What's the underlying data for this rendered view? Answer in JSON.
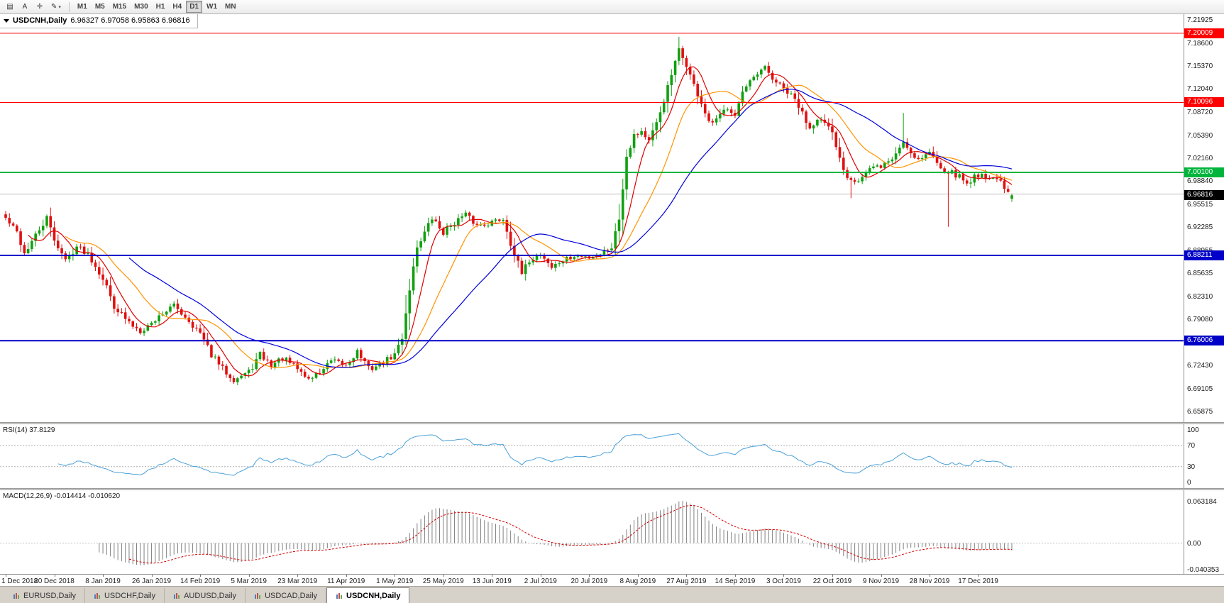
{
  "toolbar": {
    "tools": [
      {
        "name": "chart-list",
        "glyph": "▤"
      },
      {
        "name": "text-tool",
        "glyph": "A"
      },
      {
        "name": "crosshair-tool",
        "glyph": "✛"
      },
      {
        "name": "draw-tool",
        "glyph": "✎",
        "caret": true
      }
    ],
    "timeframes": [
      "M1",
      "M5",
      "M15",
      "M30",
      "H1",
      "H4",
      "D1",
      "W1",
      "MN"
    ],
    "active_timeframe": "D1"
  },
  "chart": {
    "symbol_title": "USDCNH,Daily",
    "ohlc_string": "6.96327 6.97058 6.95863 6.96816",
    "open": "6.96327",
    "high": "6.97058",
    "low": "6.95863",
    "close": "6.96816"
  },
  "price_axis": {
    "ticks": [
      "7.21925",
      "7.18600",
      "7.15370",
      "7.12040",
      "7.08720",
      "7.05390",
      "7.02160",
      "6.98840",
      "6.95515",
      "6.92285",
      "6.88955",
      "6.85635",
      "6.82310",
      "6.79080",
      "6.75750",
      "6.72430",
      "6.69105",
      "6.65875"
    ]
  },
  "levels": [
    {
      "label": "7.20009",
      "value": 7.20009,
      "color": "#ff0000",
      "badge": true,
      "width": 1
    },
    {
      "label": "7.10096",
      "value": 7.10096,
      "color": "#ff0000",
      "badge": true,
      "width": 1
    },
    {
      "label": "7.00100",
      "value": 7.001,
      "color": "#00b43c",
      "badge": true,
      "width": 2
    },
    {
      "label": "6.88211",
      "value": 6.88211,
      "color": "#0000c8",
      "badge": true,
      "width": 2
    },
    {
      "label": "6.76006",
      "value": 6.76006,
      "color": "#0000c8",
      "badge": true,
      "width": 2
    }
  ],
  "current_price": {
    "label": "6.96816",
    "value": 6.96816,
    "badge_bg": "#000000"
  },
  "ask_line": {
    "value": 6.97,
    "color": "#bdbdbd"
  },
  "rsi": {
    "title": "RSI(14) 37.8129",
    "period": 14,
    "current": "37.8129",
    "axis_ticks": [
      "100",
      "70",
      "30",
      "0"
    ],
    "axis_values": [
      100,
      70,
      30,
      0
    ],
    "guide_levels": [
      70,
      30
    ],
    "line_color": "#4aa0d8"
  },
  "macd": {
    "title": "MACD(12,26,9) -0.014414 -0.010620",
    "params": "12,26,9",
    "values": [
      "-0.014414",
      "-0.010620"
    ],
    "axis_ticks": [
      "0.063184",
      "0.00",
      "-0.040353"
    ],
    "axis_values": [
      0.063184,
      0,
      -0.040353
    ],
    "histogram_color": "#808080",
    "signal_color": "#d00000"
  },
  "dates": [
    "1 Dec 2018",
    "20 Dec 2018",
    "8 Jan 2019",
    "26 Jan 2019",
    "14 Feb 2019",
    "5 Mar 2019",
    "23 Mar 2019",
    "11 Apr 2019",
    "1 May 2019",
    "25 May 2019",
    "13 Jun 2019",
    "2 Jul 2019",
    "20 Jul 2019",
    "8 Aug 2019",
    "27 Aug 2019",
    "14 Sep 2019",
    "3 Oct 2019",
    "22 Oct 2019",
    "9 Nov 2019",
    "28 Nov 2019",
    "17 Dec 2019"
  ],
  "tabs": {
    "items": [
      {
        "label": "EURUSD,Daily",
        "active": false
      },
      {
        "label": "USDCHF,Daily",
        "active": false
      },
      {
        "label": "AUDUSD,Daily",
        "active": false
      },
      {
        "label": "USDCAD,Daily",
        "active": false
      },
      {
        "label": "USDCNH,Daily",
        "active": true
      }
    ]
  },
  "chart_data": {
    "type": "candlestick",
    "symbol": "USDCNH",
    "timeframe": "Daily",
    "candle_count": 270,
    "date_label_step": 13,
    "ylim": [
      6.65875,
      7.21925
    ],
    "colors": {
      "up": "#10a010",
      "down": "#e01010"
    },
    "close_anchors": [
      [
        0,
        6.935
      ],
      [
        3,
        6.915
      ],
      [
        5,
        6.885
      ],
      [
        8,
        6.91
      ],
      [
        11,
        6.935
      ],
      [
        13,
        6.905
      ],
      [
        16,
        6.875
      ],
      [
        19,
        6.895
      ],
      [
        22,
        6.885
      ],
      [
        26,
        6.85
      ],
      [
        29,
        6.81
      ],
      [
        33,
        6.785
      ],
      [
        36,
        6.775
      ],
      [
        39,
        6.785
      ],
      [
        42,
        6.8
      ],
      [
        45,
        6.81
      ],
      [
        48,
        6.795
      ],
      [
        52,
        6.77
      ],
      [
        55,
        6.74
      ],
      [
        58,
        6.72
      ],
      [
        61,
        6.705
      ],
      [
        65,
        6.715
      ],
      [
        68,
        6.74
      ],
      [
        71,
        6.725
      ],
      [
        74,
        6.735
      ],
      [
        78,
        6.72
      ],
      [
        81,
        6.705
      ],
      [
        84,
        6.715
      ],
      [
        87,
        6.73
      ],
      [
        91,
        6.725
      ],
      [
        94,
        6.745
      ],
      [
        97,
        6.72
      ],
      [
        100,
        6.725
      ],
      [
        104,
        6.74
      ],
      [
        106,
        6.765
      ],
      [
        108,
        6.835
      ],
      [
        110,
        6.895
      ],
      [
        112,
        6.915
      ],
      [
        114,
        6.935
      ],
      [
        117,
        6.915
      ],
      [
        120,
        6.93
      ],
      [
        123,
        6.94
      ],
      [
        126,
        6.925
      ],
      [
        130,
        6.93
      ],
      [
        133,
        6.935
      ],
      [
        135,
        6.9
      ],
      [
        138,
        6.855
      ],
      [
        140,
        6.875
      ],
      [
        143,
        6.885
      ],
      [
        146,
        6.865
      ],
      [
        149,
        6.875
      ],
      [
        152,
        6.88
      ],
      [
        156,
        6.88
      ],
      [
        159,
        6.885
      ],
      [
        162,
        6.895
      ],
      [
        164,
        6.935
      ],
      [
        166,
        7.025
      ],
      [
        168,
        7.055
      ],
      [
        170,
        7.06
      ],
      [
        172,
        7.045
      ],
      [
        174,
        7.07
      ],
      [
        176,
        7.105
      ],
      [
        178,
        7.14
      ],
      [
        180,
        7.175
      ],
      [
        182,
        7.155
      ],
      [
        184,
        7.125
      ],
      [
        186,
        7.1
      ],
      [
        188,
        7.07
      ],
      [
        190,
        7.075
      ],
      [
        193,
        7.095
      ],
      [
        195,
        7.085
      ],
      [
        197,
        7.115
      ],
      [
        200,
        7.135
      ],
      [
        203,
        7.15
      ],
      [
        205,
        7.135
      ],
      [
        208,
        7.12
      ],
      [
        211,
        7.105
      ],
      [
        213,
        7.085
      ],
      [
        215,
        7.065
      ],
      [
        217,
        7.08
      ],
      [
        219,
        7.07
      ],
      [
        221,
        7.055
      ],
      [
        223,
        7.02
      ],
      [
        225,
        6.995
      ],
      [
        228,
        6.99
      ],
      [
        231,
        7.005
      ],
      [
        234,
        7.01
      ],
      [
        237,
        7.02
      ],
      [
        240,
        7.045
      ],
      [
        242,
        7.03
      ],
      [
        244,
        7.02
      ],
      [
        247,
        7.03
      ],
      [
        249,
        7.015
      ],
      [
        251,
        7.005
      ],
      [
        253,
        7.0
      ],
      [
        255,
        6.995
      ],
      [
        257,
        6.985
      ],
      [
        259,
        6.995
      ],
      [
        261,
        7.0
      ],
      [
        263,
        6.99
      ],
      [
        265,
        6.995
      ],
      [
        267,
        6.975
      ],
      [
        269,
        6.96816
      ]
    ],
    "spikes": [
      {
        "i": 109,
        "type": "low",
        "price": 6.826
      },
      {
        "i": 180,
        "type": "high",
        "price": 7.195
      },
      {
        "i": 226,
        "type": "low",
        "price": 6.964
      },
      {
        "i": 240,
        "type": "high",
        "price": 7.086
      },
      {
        "i": 252,
        "type": "low",
        "price": 6.923
      }
    ],
    "final_ohlc": [
      6.96327,
      6.97058,
      6.95863,
      6.96816
    ],
    "moving_averages": [
      {
        "period": 7,
        "color": "#e00000"
      },
      {
        "period": 17,
        "color": "#ff9400"
      },
      {
        "period": 34,
        "color": "#0000dd"
      }
    ],
    "indicators": {
      "rsi": {
        "period": 14,
        "last": 37.8129
      },
      "macd": {
        "fast": 12,
        "slow": 26,
        "signal": 9,
        "last": [
          -0.014414,
          -0.01062
        ]
      }
    }
  }
}
